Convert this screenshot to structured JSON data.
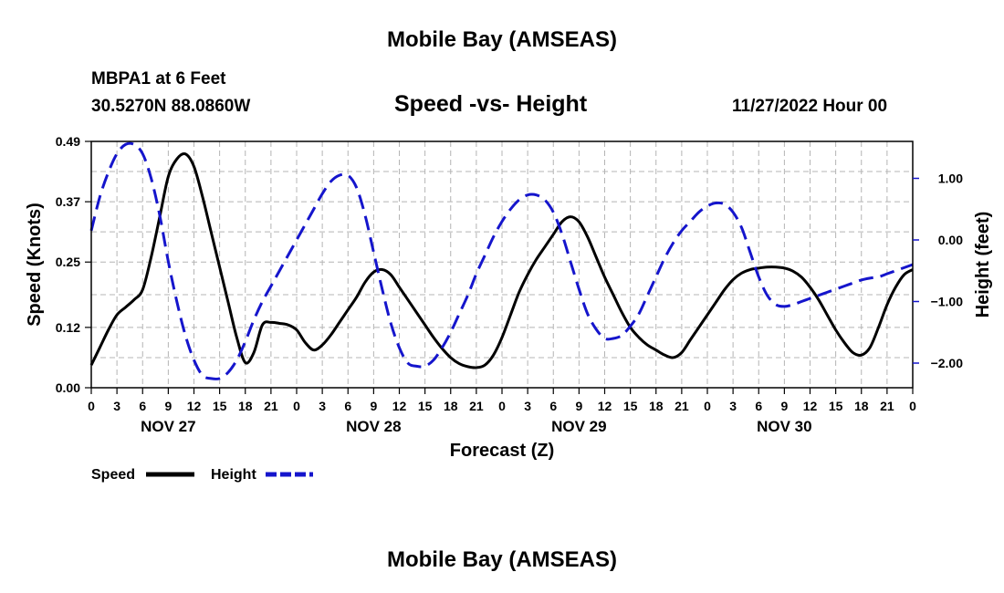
{
  "header": {
    "title": "Mobile Bay (AMSEAS)",
    "station": "MBPA1 at 6 Feet",
    "coords": "30.5270N  88.0860W",
    "subtitle": "Speed -vs- Height",
    "datetime": "11/27/2022 Hour 00"
  },
  "footer": {
    "title": "Mobile Bay (AMSEAS)"
  },
  "chart_data": {
    "type": "line",
    "title": "Speed -vs- Height",
    "xlabel": "Forecast (Z)",
    "ylabel_left": "Speed (Knots)",
    "ylabel_right": "Height (feet)",
    "x_range": [
      0,
      96
    ],
    "x_ticks": [
      0,
      3,
      6,
      9,
      12,
      15,
      18,
      21,
      24,
      27,
      30,
      33,
      36,
      39,
      42,
      45,
      48,
      51,
      54,
      57,
      60,
      63,
      66,
      69,
      72,
      75,
      78,
      81,
      84,
      87,
      90,
      93,
      96
    ],
    "x_tick_labels": [
      "0",
      "3",
      "6",
      "9",
      "12",
      "15",
      "18",
      "21",
      "0",
      "3",
      "6",
      "9",
      "12",
      "15",
      "18",
      "21",
      "0",
      "3",
      "6",
      "9",
      "12",
      "15",
      "18",
      "21",
      "0",
      "3",
      "6",
      "9",
      "12",
      "15",
      "18",
      "21",
      "0"
    ],
    "day_labels": [
      {
        "x": 9,
        "label": "NOV 27"
      },
      {
        "x": 33,
        "label": "NOV 28"
      },
      {
        "x": 57,
        "label": "NOV 29"
      },
      {
        "x": 81,
        "label": "NOV 30"
      }
    ],
    "y_left_range": [
      0,
      0.49
    ],
    "y_left_ticks": [
      0,
      0.12,
      0.25,
      0.37,
      0.49
    ],
    "y_left_tick_labels": [
      "0.00",
      "0.12",
      "0.25",
      "0.37",
      "0.49"
    ],
    "y_right_range": [
      -2.4,
      1.6
    ],
    "y_right_ticks": [
      -2,
      -1,
      0,
      1
    ],
    "y_right_tick_labels": [
      "−2.00",
      "−1.00",
      "0.00",
      "1.00"
    ],
    "grid": true,
    "legend": [
      {
        "name": "Speed",
        "color": "#000000",
        "style": "solid"
      },
      {
        "name": "Height",
        "color": "#1515cc",
        "style": "dashed"
      }
    ],
    "series": [
      {
        "name": "Speed",
        "axis": "left",
        "color": "#000000",
        "style": "solid",
        "x": [
          0,
          1,
          2,
          3,
          4,
          5,
          6,
          7,
          8,
          9,
          10,
          11,
          12,
          13,
          14,
          15,
          16,
          17,
          18,
          19,
          20,
          21,
          22,
          23,
          24,
          25,
          26,
          27,
          28,
          29,
          30,
          31,
          32,
          33,
          34,
          35,
          36,
          37,
          38,
          39,
          40,
          41,
          42,
          43,
          44,
          45,
          46,
          47,
          48,
          49,
          50,
          51,
          52,
          53,
          54,
          55,
          56,
          57,
          58,
          59,
          60,
          61,
          62,
          63,
          64,
          65,
          66,
          67,
          68,
          69,
          70,
          71,
          72,
          73,
          74,
          75,
          76,
          77,
          78,
          79,
          80,
          81,
          82,
          83,
          84,
          85,
          86,
          87,
          88,
          89,
          90,
          91,
          92,
          93,
          94,
          95,
          96
        ],
        "values": [
          0.045,
          0.08,
          0.115,
          0.145,
          0.16,
          0.175,
          0.195,
          0.26,
          0.34,
          0.42,
          0.455,
          0.465,
          0.44,
          0.38,
          0.31,
          0.24,
          0.17,
          0.1,
          0.05,
          0.07,
          0.125,
          0.13,
          0.128,
          0.125,
          0.115,
          0.09,
          0.075,
          0.085,
          0.105,
          0.13,
          0.155,
          0.18,
          0.21,
          0.23,
          0.235,
          0.225,
          0.2,
          0.175,
          0.15,
          0.125,
          0.1,
          0.078,
          0.06,
          0.048,
          0.042,
          0.04,
          0.045,
          0.065,
          0.1,
          0.145,
          0.19,
          0.225,
          0.255,
          0.28,
          0.305,
          0.33,
          0.34,
          0.33,
          0.3,
          0.26,
          0.22,
          0.185,
          0.15,
          0.12,
          0.1,
          0.085,
          0.075,
          0.065,
          0.06,
          0.07,
          0.095,
          0.12,
          0.145,
          0.17,
          0.195,
          0.215,
          0.228,
          0.235,
          0.238,
          0.24,
          0.24,
          0.238,
          0.232,
          0.22,
          0.2,
          0.175,
          0.145,
          0.115,
          0.09,
          0.07,
          0.065,
          0.08,
          0.12,
          0.165,
          0.2,
          0.225,
          0.235
        ]
      },
      {
        "name": "Height",
        "axis": "right",
        "color": "#1515cc",
        "style": "dashed",
        "x": [
          0,
          1,
          2,
          3,
          4,
          5,
          6,
          7,
          8,
          9,
          10,
          11,
          12,
          13,
          14,
          15,
          16,
          17,
          18,
          19,
          20,
          21,
          22,
          23,
          24,
          25,
          26,
          27,
          28,
          29,
          30,
          31,
          32,
          33,
          34,
          35,
          36,
          37,
          38,
          39,
          40,
          41,
          42,
          43,
          44,
          45,
          46,
          47,
          48,
          49,
          50,
          51,
          52,
          53,
          54,
          55,
          56,
          57,
          58,
          59,
          60,
          61,
          62,
          63,
          64,
          65,
          66,
          67,
          68,
          69,
          70,
          71,
          72,
          73,
          74,
          75,
          76,
          77,
          78,
          79,
          80,
          81,
          82,
          83,
          84,
          85,
          86,
          87,
          88,
          89,
          90,
          91,
          92,
          93,
          94,
          95,
          96
        ],
        "values": [
          0.15,
          0.7,
          1.1,
          1.4,
          1.55,
          1.55,
          1.4,
          1.0,
          0.4,
          -0.35,
          -1.0,
          -1.55,
          -1.95,
          -2.2,
          -2.25,
          -2.25,
          -2.15,
          -1.95,
          -1.65,
          -1.3,
          -1.0,
          -0.75,
          -0.5,
          -0.25,
          0.0,
          0.25,
          0.5,
          0.75,
          0.95,
          1.05,
          1.05,
          0.85,
          0.4,
          -0.2,
          -0.8,
          -1.35,
          -1.75,
          -2.0,
          -2.05,
          -2.05,
          -1.95,
          -1.75,
          -1.5,
          -1.2,
          -0.9,
          -0.55,
          -0.25,
          0.05,
          0.3,
          0.5,
          0.65,
          0.73,
          0.73,
          0.65,
          0.45,
          0.1,
          -0.35,
          -0.8,
          -1.2,
          -1.45,
          -1.6,
          -1.6,
          -1.55,
          -1.4,
          -1.2,
          -0.9,
          -0.6,
          -0.3,
          -0.05,
          0.15,
          0.3,
          0.45,
          0.55,
          0.6,
          0.58,
          0.45,
          0.2,
          -0.2,
          -0.6,
          -0.9,
          -1.05,
          -1.08,
          -1.05,
          -1.0,
          -0.95,
          -0.9,
          -0.85,
          -0.8,
          -0.75,
          -0.7,
          -0.65,
          -0.62,
          -0.6,
          -0.55,
          -0.5,
          -0.45,
          -0.4
        ]
      }
    ]
  }
}
